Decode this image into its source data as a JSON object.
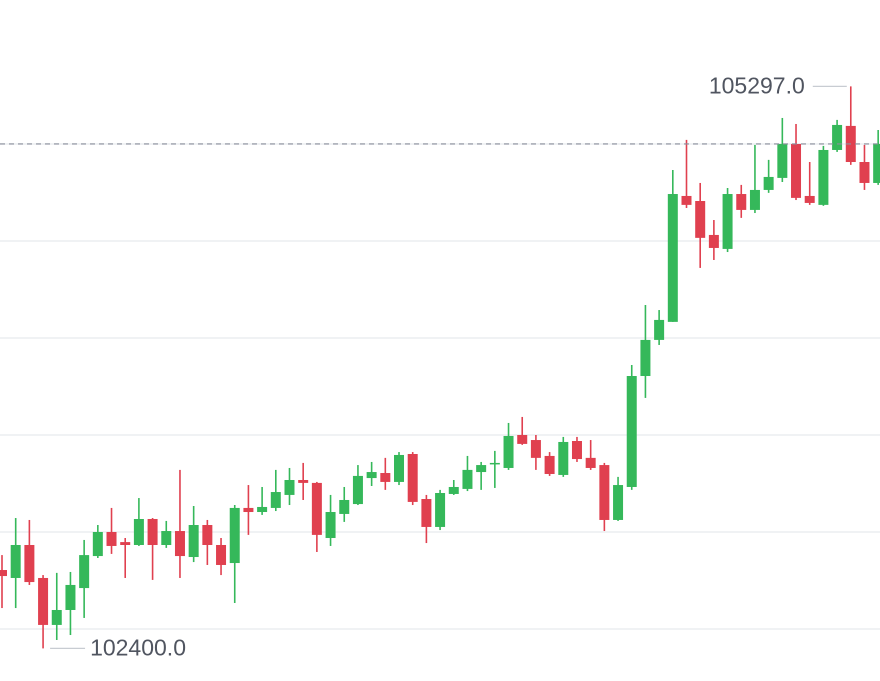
{
  "chart_data": {
    "type": "candlestick",
    "ylim": [
      102232,
      105742
    ],
    "yticks": [
      102500,
      103000,
      103500,
      104000,
      104500,
      105000
    ],
    "grid": true,
    "up_color": "#35b85a",
    "down_color": "#e0404f",
    "last_price": 105000,
    "max_label": {
      "value": 105297,
      "label": "105297.0"
    },
    "min_label": {
      "value": 102400,
      "label": "102400.0"
    },
    "open": [
      102804,
      102763,
      102933,
      102763,
      102521,
      102598,
      102711,
      102876,
      103000,
      102948,
      102933,
      103067,
      102933,
      103005,
      102871,
      103036,
      102933,
      102840,
      103124,
      103103,
      103124,
      103191,
      103268,
      103253,
      102969,
      103093,
      103144,
      103278,
      103304,
      103258,
      103402,
      103170,
      103026,
      103196,
      103222,
      103309,
      103351,
      103330,
      103500,
      103474,
      103392,
      103294,
      103469,
      103382,
      103345,
      103062,
      103232,
      103804,
      103990,
      104083,
      104732,
      104706,
      104531,
      104459,
      104742,
      104660,
      104763,
      104825,
      105000,
      104732,
      104686,
      104969,
      105093,
      104907,
      104799
    ],
    "high": [
      102881,
      103072,
      103062,
      102778,
      102789,
      102794,
      102959,
      103036,
      103124,
      102969,
      103175,
      103072,
      103057,
      103320,
      103134,
      103062,
      102969,
      103139,
      103242,
      103232,
      103320,
      103330,
      103356,
      103258,
      103191,
      103232,
      103345,
      103361,
      103382,
      103412,
      103412,
      103191,
      103217,
      103268,
      103392,
      103361,
      103418,
      103562,
      103593,
      103500,
      103412,
      103490,
      103490,
      103474,
      103356,
      103284,
      103861,
      104170,
      104144,
      104866,
      105021,
      104799,
      104608,
      104773,
      104789,
      104995,
      104918,
      105134,
      105103,
      104907,
      104990,
      105124,
      105297,
      104995,
      105072
    ],
    "low": [
      102608,
      102608,
      102727,
      102400,
      102443,
      102469,
      102557,
      102866,
      102887,
      102763,
      102928,
      102753,
      102918,
      102763,
      102845,
      102830,
      102778,
      102634,
      102985,
      103088,
      103108,
      103139,
      103165,
      102897,
      102928,
      103052,
      103139,
      103237,
      103217,
      103242,
      103139,
      102943,
      103010,
      103191,
      103211,
      103217,
      103227,
      103320,
      103449,
      103320,
      103289,
      103284,
      103361,
      103320,
      103005,
      103057,
      103217,
      103691,
      103964,
      104083,
      104670,
      104361,
      104402,
      104443,
      104619,
      104644,
      104748,
      104804,
      104711,
      104686,
      104681,
      104959,
      104892,
      104763,
      104789
    ],
    "close": [
      102773,
      102933,
      102742,
      102521,
      102598,
      102727,
      102881,
      103000,
      102928,
      102933,
      103067,
      102933,
      103005,
      102876,
      103036,
      102933,
      102830,
      103124,
      103103,
      103129,
      103206,
      103268,
      103253,
      102985,
      103103,
      103165,
      103289,
      103309,
      103258,
      103397,
      103155,
      103026,
      103201,
      103232,
      103320,
      103345,
      103356,
      103495,
      103454,
      103382,
      103299,
      103464,
      103376,
      103330,
      103062,
      103242,
      103804,
      103990,
      104093,
      104742,
      104686,
      104516,
      104464,
      104742,
      104660,
      104763,
      104830,
      105000,
      104722,
      104696,
      104969,
      105098,
      104907,
      104799,
      105000
    ]
  }
}
